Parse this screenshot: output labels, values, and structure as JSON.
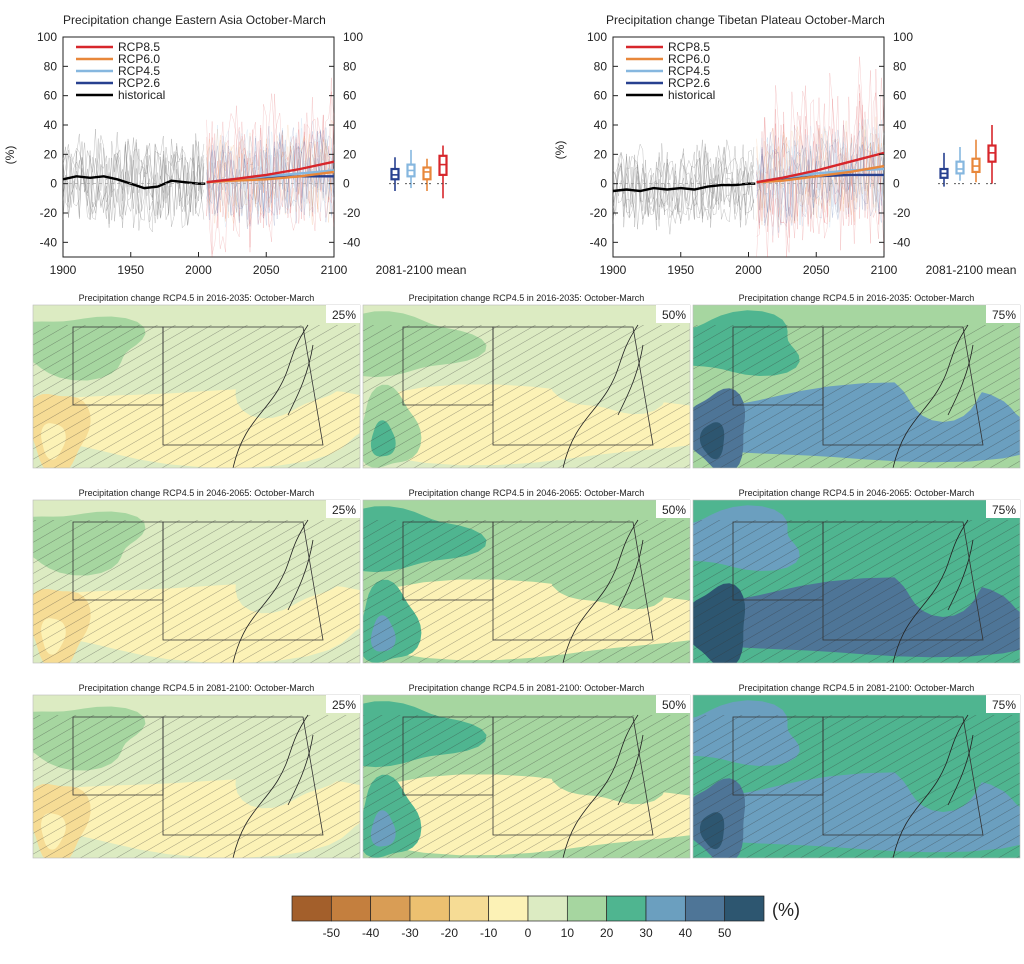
{
  "chart_data": [
    {
      "type": "line",
      "title": "Precipitation change Eastern Asia October-March",
      "ylabel": "(%)",
      "ylim": [
        -50,
        100
      ],
      "xlim": [
        1900,
        2100
      ],
      "x_ticks": [
        "1900",
        "1950",
        "2000",
        "2050",
        "2100"
      ],
      "y_ticks": [
        "100",
        "80",
        "60",
        "40",
        "20",
        "0",
        "-20",
        "-40"
      ],
      "legend_placement": "top-left",
      "series": [
        {
          "name": "RCP8.5",
          "color": "#d7262b",
          "x": [
            2006,
            2025,
            2050,
            2075,
            2100
          ],
          "y": [
            1,
            3,
            6,
            10,
            15
          ]
        },
        {
          "name": "RCP6.0",
          "color": "#e8873a",
          "x": [
            2006,
            2025,
            2050,
            2075,
            2100
          ],
          "y": [
            1,
            2,
            3,
            5,
            8
          ]
        },
        {
          "name": "RCP4.5",
          "color": "#86b7df",
          "x": [
            2006,
            2025,
            2050,
            2075,
            2100
          ],
          "y": [
            1,
            3,
            5,
            7,
            9
          ]
        },
        {
          "name": "RCP2.6",
          "color": "#27408f",
          "x": [
            2006,
            2025,
            2050,
            2075,
            2100
          ],
          "y": [
            1,
            3,
            4,
            5,
            5
          ]
        },
        {
          "name": "historical",
          "color": "#000000",
          "x": [
            1900,
            1910,
            1920,
            1930,
            1940,
            1950,
            1960,
            1970,
            1980,
            1990,
            2000,
            2005
          ],
          "y": [
            3,
            5,
            4,
            5,
            3,
            0,
            -3,
            -2,
            2,
            1,
            0,
            0
          ]
        }
      ],
      "boxplot": {
        "label": "2081-2100 mean",
        "boxes": [
          {
            "scenario": "RCP2.6",
            "color": "#27408f",
            "min": -5,
            "q1": 3,
            "median": 6,
            "q3": 10,
            "max": 18
          },
          {
            "scenario": "RCP4.5",
            "color": "#86b7df",
            "min": -3,
            "q1": 5,
            "median": 9,
            "q3": 13,
            "max": 23
          },
          {
            "scenario": "RCP6.0",
            "color": "#e8873a",
            "min": -5,
            "q1": 3,
            "median": 8,
            "q3": 11,
            "max": 17
          },
          {
            "scenario": "RCP8.5",
            "color": "#d7262b",
            "min": -10,
            "q1": 6,
            "median": 13,
            "q3": 19,
            "max": 26
          }
        ]
      }
    },
    {
      "type": "line",
      "title": "Precipitation change Tibetan Plateau October-March",
      "ylabel": "(%)",
      "ylim": [
        -50,
        100
      ],
      "xlim": [
        1900,
        2100
      ],
      "x_ticks": [
        "1900",
        "1950",
        "2000",
        "2050",
        "2100"
      ],
      "y_ticks": [
        "100",
        "80",
        "60",
        "40",
        "20",
        "0",
        "-20",
        "-40"
      ],
      "legend_placement": "top-left",
      "series": [
        {
          "name": "RCP8.5",
          "color": "#d7262b",
          "x": [
            2006,
            2025,
            2050,
            2075,
            2100
          ],
          "y": [
            1,
            4,
            9,
            15,
            21
          ]
        },
        {
          "name": "RCP6.0",
          "color": "#e8873a",
          "x": [
            2006,
            2025,
            2050,
            2075,
            2100
          ],
          "y": [
            1,
            2,
            5,
            8,
            12
          ]
        },
        {
          "name": "RCP4.5",
          "color": "#86b7df",
          "x": [
            2006,
            2025,
            2050,
            2075,
            2100
          ],
          "y": [
            1,
            4,
            7,
            9,
            10
          ]
        },
        {
          "name": "RCP2.6",
          "color": "#27408f",
          "x": [
            2006,
            2025,
            2050,
            2075,
            2100
          ],
          "y": [
            1,
            3,
            5,
            6,
            6
          ]
        },
        {
          "name": "historical",
          "color": "#000000",
          "x": [
            1900,
            1910,
            1920,
            1930,
            1940,
            1950,
            1960,
            1970,
            1980,
            1990,
            2000,
            2005
          ],
          "y": [
            -5,
            -4,
            -5,
            -3,
            -4,
            -3,
            -4,
            -2,
            -1,
            -1,
            0,
            0
          ]
        }
      ],
      "boxplot": {
        "label": "2081-2100 mean",
        "boxes": [
          {
            "scenario": "RCP2.6",
            "color": "#27408f",
            "min": -2,
            "q1": 4,
            "median": 7,
            "q3": 10,
            "max": 21
          },
          {
            "scenario": "RCP4.5",
            "color": "#86b7df",
            "min": 2,
            "q1": 7,
            "median": 10,
            "q3": 15,
            "max": 25
          },
          {
            "scenario": "RCP6.0",
            "color": "#e8873a",
            "min": 1,
            "q1": 8,
            "median": 12,
            "q3": 17,
            "max": 30
          },
          {
            "scenario": "RCP8.5",
            "color": "#d7262b",
            "min": 0,
            "q1": 15,
            "median": 21,
            "q3": 26,
            "max": 40
          }
        ]
      }
    },
    {
      "type": "heatmap",
      "map_panels": [
        {
          "title": "Precipitation change RCP4.5 in 2016-2035: October-March",
          "percentile": "25%"
        },
        {
          "title": "Precipitation change RCP4.5 in 2016-2035: October-March",
          "percentile": "50%"
        },
        {
          "title": "Precipitation change RCP4.5 in 2016-2035: October-March",
          "percentile": "75%"
        },
        {
          "title": "Precipitation change RCP4.5 in 2046-2065: October-March",
          "percentile": "25%"
        },
        {
          "title": "Precipitation change RCP4.5 in 2046-2065: October-March",
          "percentile": "50%"
        },
        {
          "title": "Precipitation change RCP4.5 in 2046-2065: October-March",
          "percentile": "75%"
        },
        {
          "title": "Precipitation change RCP4.5 in 2081-2100: October-March",
          "percentile": "25%"
        },
        {
          "title": "Precipitation change RCP4.5 in 2081-2100: October-March",
          "percentile": "50%"
        },
        {
          "title": "Precipitation change RCP4.5 in 2081-2100: October-March",
          "percentile": "75%"
        }
      ],
      "colorbar": {
        "unit": "(%)",
        "tick_labels": [
          "-50",
          "-40",
          "-30",
          "-20",
          "-10",
          "0",
          "10",
          "20",
          "30",
          "40",
          "50"
        ],
        "colors": [
          "#a35f2b",
          "#c47f3e",
          "#d99d55",
          "#ecc070",
          "#f6dc95",
          "#fcf2b6",
          "#dcebc2",
          "#a6d6a0",
          "#4fb590",
          "#6b9fbf",
          "#4e7597",
          "#2d5670"
        ]
      }
    }
  ]
}
